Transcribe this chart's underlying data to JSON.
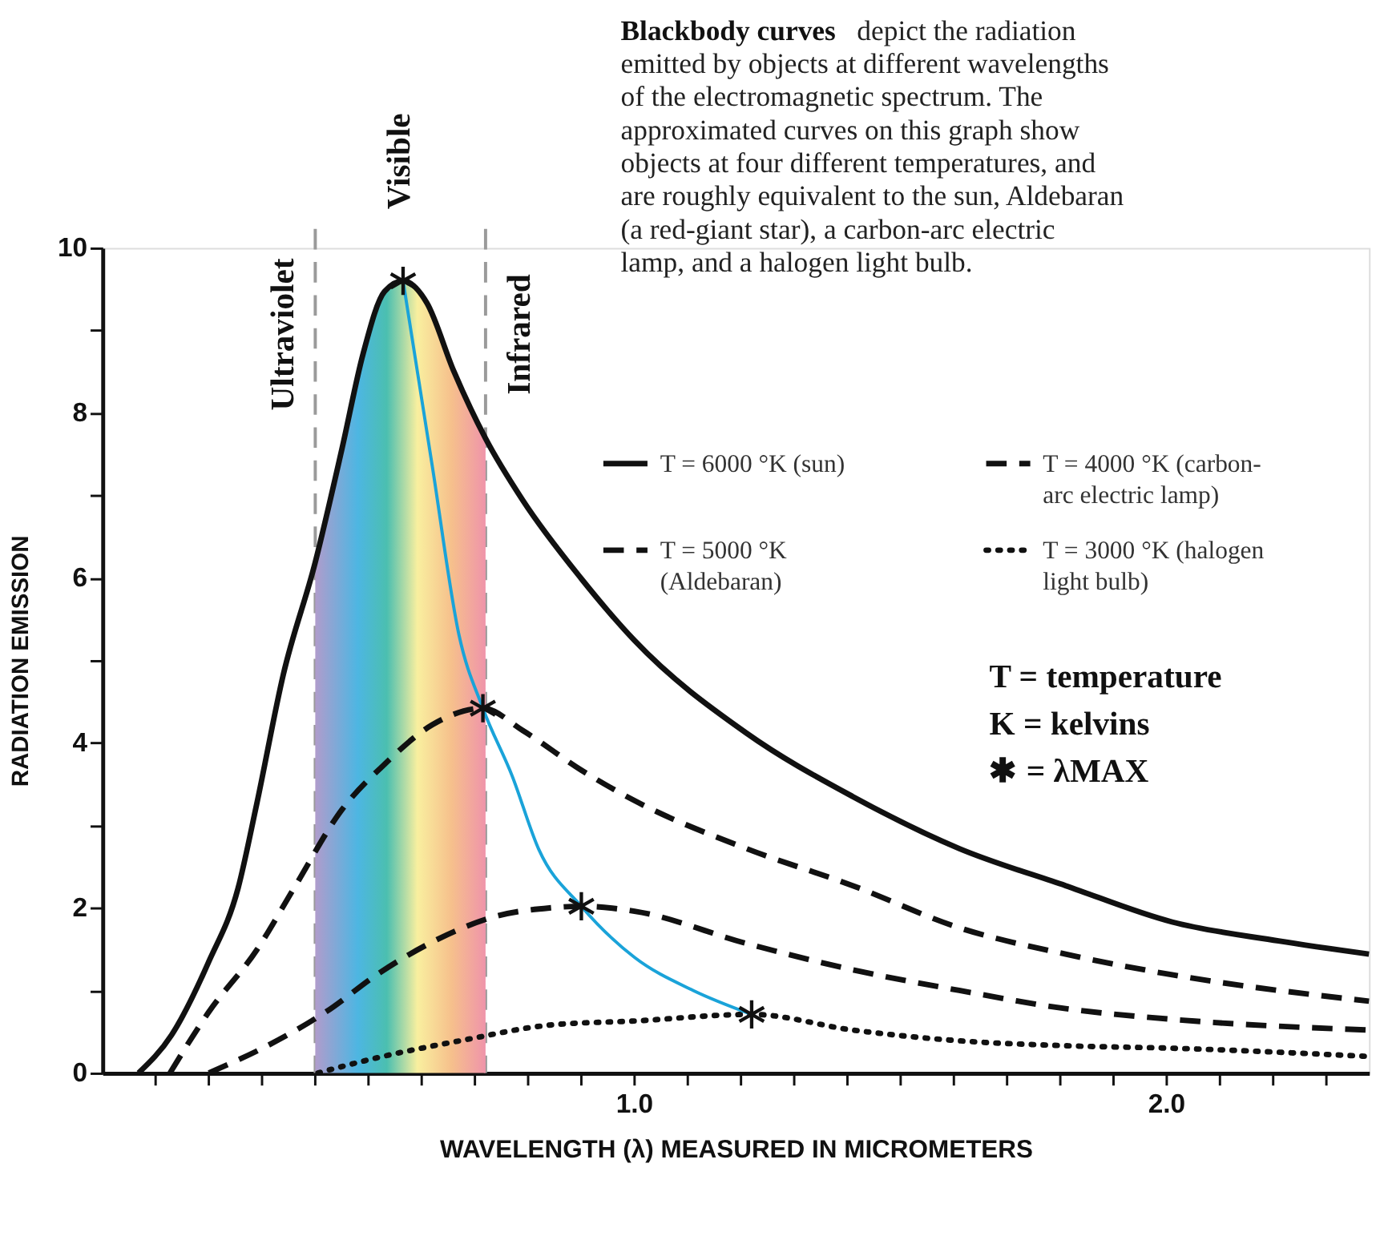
{
  "chart_data": {
    "type": "line",
    "title": "Blackbody curves",
    "subtitle": "depict the radiation emitted by objects at different wavelengths of the electromagnetic spectrum. The approximated curves on this graph show objects at four different temperatures, and are roughly equivalent to the sun, Aldebaran (a red-giant star), a carbon-arc electric lamp, and a halogen light bulb.",
    "xlabel": "WAVELENGTH (λ) MEASURED IN MICROMETERS",
    "ylabel": "RADIATION EMISSION",
    "xlim": [
      0,
      2.38
    ],
    "ylim": [
      0,
      10
    ],
    "xticks": [
      {
        "value": 0.1,
        "label": null
      },
      {
        "value": 0.2,
        "label": null
      },
      {
        "value": 0.3,
        "label": null
      },
      {
        "value": 0.4,
        "label": null
      },
      {
        "value": 0.5,
        "label": null
      },
      {
        "value": 0.6,
        "label": null
      },
      {
        "value": 0.7,
        "label": null
      },
      {
        "value": 0.8,
        "label": null
      },
      {
        "value": 0.9,
        "label": null
      },
      {
        "value": 1.0,
        "label": "1.0"
      },
      {
        "value": 1.1,
        "label": null
      },
      {
        "value": 1.2,
        "label": null
      },
      {
        "value": 1.3,
        "label": null
      },
      {
        "value": 1.4,
        "label": null
      },
      {
        "value": 1.5,
        "label": null
      },
      {
        "value": 1.6,
        "label": null
      },
      {
        "value": 1.7,
        "label": null
      },
      {
        "value": 1.8,
        "label": null
      },
      {
        "value": 1.9,
        "label": null
      },
      {
        "value": 2.0,
        "label": "2.0"
      },
      {
        "value": 2.1,
        "label": null
      },
      {
        "value": 2.2,
        "label": null
      },
      {
        "value": 2.3,
        "label": null
      }
    ],
    "yticks": [
      0,
      {
        "value": 1,
        "label": null
      },
      2,
      {
        "value": 3,
        "label": null
      },
      4,
      {
        "value": 5,
        "label": null
      },
      6,
      {
        "value": 7,
        "label": null
      },
      8,
      {
        "value": 9,
        "label": null
      },
      10
    ],
    "grid": false,
    "legend": "top right",
    "series": [
      {
        "name": "T = 6000 °K (sun)",
        "color": "#111111",
        "line_style": "solid",
        "x": [
          0.068,
          0.13,
          0.2,
          0.255,
          0.29,
          0.34,
          0.4,
          0.45,
          0.49,
          0.53,
          0.565,
          0.61,
          0.66,
          0.72,
          0.79,
          0.9,
          1.0,
          1.21,
          1.41,
          1.61,
          1.81,
          2.01,
          2.21,
          2.38
        ],
        "values": [
          0,
          0.46,
          1.35,
          2.24,
          3.26,
          4.83,
          6.19,
          7.56,
          8.72,
          9.47,
          9.6,
          9.33,
          8.51,
          7.69,
          6.94,
          5.99,
          5.24,
          4.12,
          3.35,
          2.72,
          2.27,
          1.83,
          1.6,
          1.44
        ]
      },
      {
        "name": "T = 5000 °K (Aldebaran)",
        "color": "#111111",
        "line_style": "dashed",
        "x": [
          0.127,
          0.2,
          0.29,
          0.36,
          0.45,
          0.53,
          0.62,
          0.715,
          0.79,
          0.9,
          1.0,
          1.21,
          1.41,
          1.61,
          1.81,
          2.01,
          2.38
        ],
        "values": [
          0,
          0.74,
          1.49,
          2.24,
          3.19,
          3.74,
          4.22,
          4.42,
          4.15,
          3.67,
          3.3,
          2.72,
          2.27,
          1.76,
          1.44,
          1.19,
          0.87
        ]
      },
      {
        "name": "T = 4000 °K (carbon-arc electric lamp)",
        "color": "#111111",
        "line_style": "dashed",
        "x": [
          0.2,
          0.31,
          0.42,
          0.52,
          0.63,
          0.74,
          0.84,
          0.9,
          1.0,
          1.21,
          1.41,
          1.61,
          1.81,
          2.01,
          2.38
        ],
        "values": [
          0,
          0.33,
          0.74,
          1.21,
          1.62,
          1.9,
          2.0,
          2.02,
          1.96,
          1.57,
          1.25,
          1.0,
          0.78,
          0.65,
          0.52
        ]
      },
      {
        "name": "T = 3000 °K (halogen light bulb)",
        "color": "#111111",
        "line_style": "dotted",
        "x": [
          0.405,
          0.52,
          0.68,
          0.84,
          1.0,
          1.22,
          1.41,
          1.61,
          1.81,
          2.01,
          2.38
        ],
        "values": [
          0,
          0.19,
          0.4,
          0.58,
          0.63,
          0.71,
          0.52,
          0.39,
          0.33,
          0.3,
          0.2
        ]
      },
      {
        "type": "line",
        "color": "#1aa3d9",
        "line_style": "solid",
        "x": [
          0.565,
          0.62,
          0.67,
          0.715,
          0.77,
          0.82,
          0.9,
          1.0,
          1.11,
          1.22
        ],
        "values": [
          9.6,
          7.35,
          5.31,
          4.42,
          3.6,
          2.71,
          2.02,
          1.4,
          1.0,
          0.71
        ]
      },
      {
        "type": "scatter",
        "marker": "cross",
        "color": "#111111",
        "x": [
          0.565,
          0.715,
          0.9,
          1.22
        ],
        "values": [
          9.6,
          4.42,
          2.02,
          0.71
        ]
      }
    ],
    "ref_lines": [
      {
        "axis": "x",
        "value": 0.4,
        "label": "Ultraviolet",
        "color": "#9a9a9a",
        "line_style": "dashed"
      },
      {
        "axis": "x",
        "value": 0.72,
        "label": "Infrared",
        "color": "#9a9a9a",
        "line_style": "dashed"
      }
    ],
    "bands": [
      {
        "axis": "x",
        "from": 0.4,
        "to": 0.72,
        "label": "Visible"
      }
    ],
    "annotations": [
      "T = temperature",
      "K = kelvins",
      "✱ = λMAX"
    ]
  }
}
